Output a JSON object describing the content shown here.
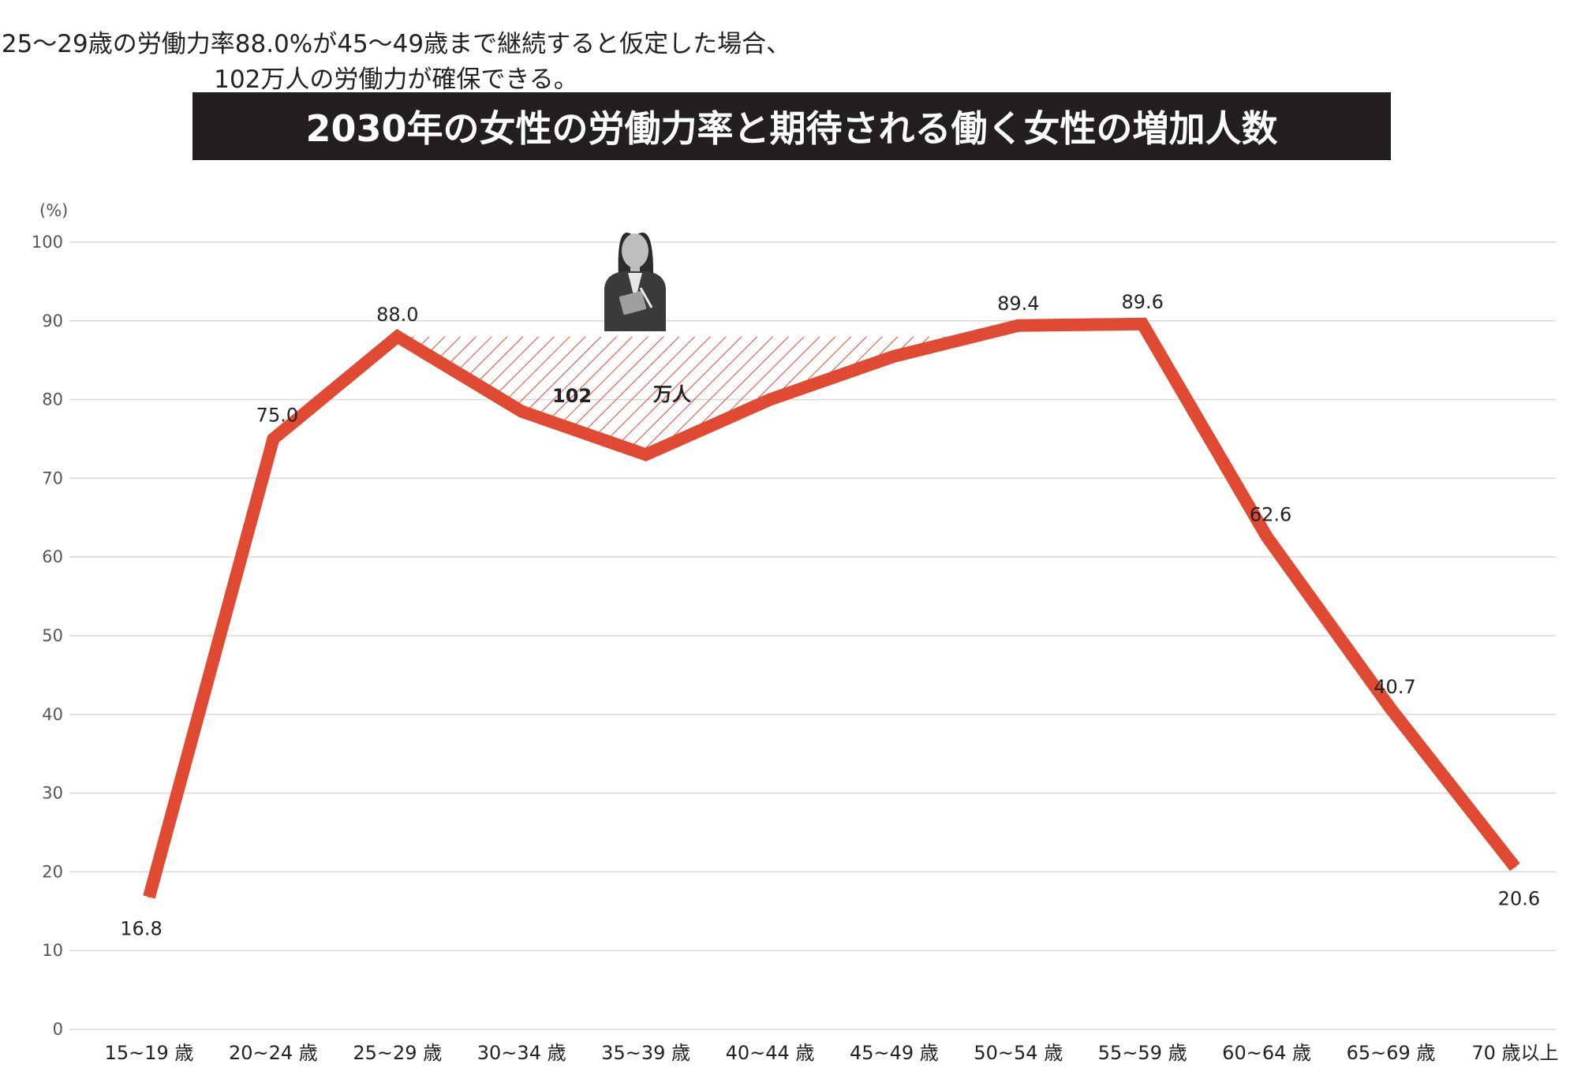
{
  "subtitle": "25～29歳の労働力率88.0%が45～49歳まで継続すると仮定した場合、102万人の労働力が確保できる。",
  "title": "2030年の女性の労働力率と期待される働く女性の増加人数",
  "colors": {
    "line": "#e04a33",
    "title_bg": "#231f20",
    "grid": "#d9d9d9",
    "icon": "#3a3a3a"
  },
  "icon": "businesswoman-icon",
  "callout": {
    "number": "102",
    "unit": "万人"
  },
  "chart_data": {
    "type": "line",
    "title": "2030年の女性の労働力率と期待される働く女性の増加人数",
    "ylabel": "(%)",
    "ylim": [
      0,
      100
    ],
    "yticks": [
      0,
      10,
      20,
      30,
      40,
      50,
      60,
      70,
      80,
      90,
      100
    ],
    "grid": true,
    "categories": [
      "15~19 歳",
      "20~24 歳",
      "25~29 歳",
      "30~34 歳",
      "35~39 歳",
      "40~44 歳",
      "45~49 歳",
      "50~54 歳",
      "55~59 歳",
      "60~64 歳",
      "65~69 歳",
      "70 歳以上"
    ],
    "values": [
      16.8,
      75.0,
      88.0,
      78.5,
      73.0,
      80.0,
      85.5,
      89.4,
      89.6,
      62.6,
      40.7,
      20.6
    ],
    "data_labels": [
      "16.8",
      "75.0",
      "88.0",
      null,
      null,
      null,
      null,
      "89.4",
      "89.6",
      "62.6",
      "40.7",
      "20.6"
    ],
    "shaded_region": {
      "from": "25~29 歳",
      "to": "45~49 歳",
      "level": 88.0
    }
  }
}
